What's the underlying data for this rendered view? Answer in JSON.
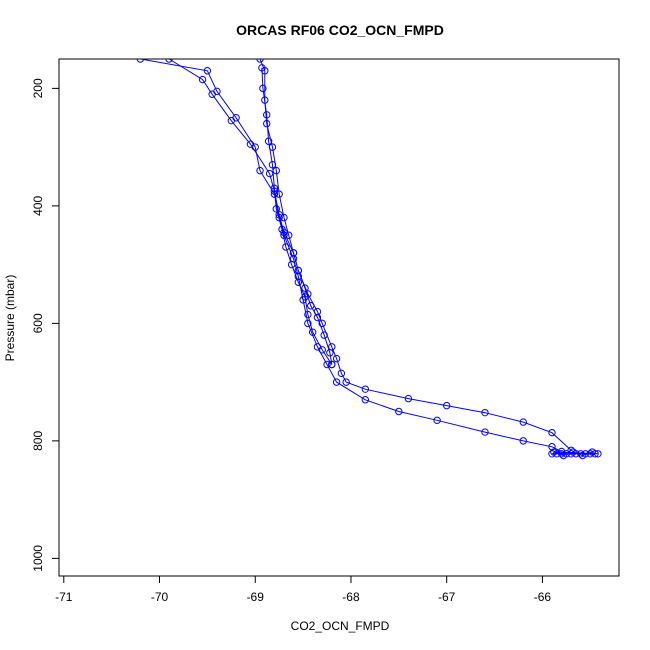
{
  "chart_data": {
    "type": "line",
    "title": "ORCAS RF06 CO2_OCN_FMPD",
    "xlabel": "CO2_OCN_FMPD",
    "ylabel": "Pressure (mbar)",
    "xlim": [
      -71.05,
      -65.2
    ],
    "ylim": [
      150,
      1030
    ],
    "y_reversed": true,
    "x_ticks": [
      -71,
      -70,
      -69,
      -68,
      -67,
      -66
    ],
    "y_ticks": [
      200,
      400,
      600,
      800,
      1000
    ],
    "grid": false,
    "legend": "none",
    "colors": {
      "series": "#0000ff",
      "axis": "#000000"
    },
    "series": [
      {
        "marker": "open-circle",
        "line": "solid",
        "points": [
          [
            -70.2,
            150
          ],
          [
            -69.5,
            170
          ],
          [
            -69.4,
            205
          ],
          [
            -69.2,
            250
          ],
          [
            -69.0,
            300
          ],
          [
            -68.95,
            340
          ],
          [
            -68.8,
            380
          ],
          [
            -68.75,
            420
          ],
          [
            -68.7,
            450
          ],
          [
            -68.6,
            490
          ],
          [
            -68.55,
            520
          ],
          [
            -68.5,
            560
          ],
          [
            -68.45,
            600
          ],
          [
            -68.35,
            640
          ],
          [
            -68.25,
            670
          ],
          [
            -68.15,
            700
          ],
          [
            -67.85,
            730
          ],
          [
            -67.5,
            750
          ],
          [
            -67.1,
            765
          ],
          [
            -66.6,
            785
          ],
          [
            -66.2,
            800
          ],
          [
            -65.9,
            810
          ],
          [
            -65.8,
            818
          ]
        ]
      },
      {
        "marker": "open-circle",
        "line": "solid",
        "points": [
          [
            -65.7,
            816
          ],
          [
            -65.9,
            786
          ],
          [
            -66.2,
            768
          ],
          [
            -66.6,
            752
          ],
          [
            -67.0,
            740
          ],
          [
            -67.4,
            728
          ],
          [
            -67.85,
            712
          ],
          [
            -68.05,
            700
          ],
          [
            -68.1,
            685
          ],
          [
            -68.15,
            660
          ],
          [
            -68.2,
            640
          ],
          [
            -68.3,
            600
          ],
          [
            -68.35,
            580
          ],
          [
            -68.45,
            550
          ],
          [
            -68.55,
            510
          ],
          [
            -68.6,
            480
          ],
          [
            -68.7,
            445
          ],
          [
            -68.75,
            415
          ],
          [
            -68.8,
            375
          ],
          [
            -68.85,
            345
          ],
          [
            -69.05,
            295
          ],
          [
            -69.25,
            255
          ],
          [
            -69.45,
            210
          ],
          [
            -69.55,
            185
          ],
          [
            -69.9,
            150
          ]
        ]
      },
      {
        "marker": "open-circle",
        "line": "solid",
        "points": [
          [
            -68.95,
            150
          ],
          [
            -68.9,
            170
          ],
          [
            -68.9,
            220
          ],
          [
            -68.88,
            260
          ],
          [
            -68.82,
            300
          ],
          [
            -68.78,
            340
          ],
          [
            -68.75,
            380
          ],
          [
            -68.7,
            420
          ],
          [
            -68.65,
            450
          ],
          [
            -68.6,
            480
          ],
          [
            -68.55,
            510
          ],
          [
            -68.48,
            540
          ],
          [
            -68.42,
            570
          ],
          [
            -68.35,
            590
          ],
          [
            -68.28,
            620
          ],
          [
            -68.22,
            650
          ],
          [
            -68.2,
            670
          ]
        ]
      },
      {
        "marker": "open-circle",
        "line": "solid",
        "points": [
          [
            -68.2,
            670
          ],
          [
            -68.3,
            645
          ],
          [
            -68.4,
            615
          ],
          [
            -68.45,
            585
          ],
          [
            -68.48,
            555
          ],
          [
            -68.55,
            530
          ],
          [
            -68.62,
            500
          ],
          [
            -68.68,
            470
          ],
          [
            -68.72,
            440
          ],
          [
            -68.78,
            405
          ],
          [
            -68.8,
            370
          ],
          [
            -68.82,
            330
          ],
          [
            -68.86,
            290
          ],
          [
            -68.88,
            245
          ],
          [
            -68.92,
            200
          ],
          [
            -68.93,
            165
          ]
        ]
      },
      {
        "marker": "open-circle",
        "line": "solid",
        "points": [
          [
            -65.9,
            822
          ],
          [
            -65.85,
            822
          ],
          [
            -65.8,
            822
          ],
          [
            -65.75,
            822
          ],
          [
            -65.7,
            822
          ],
          [
            -65.65,
            822
          ],
          [
            -65.6,
            822
          ],
          [
            -65.55,
            822
          ],
          [
            -65.5,
            822
          ],
          [
            -65.45,
            822
          ],
          [
            -65.42,
            822
          ],
          [
            -65.88,
            819
          ],
          [
            -65.78,
            825
          ],
          [
            -65.68,
            819
          ],
          [
            -65.58,
            825
          ],
          [
            -65.48,
            819
          ]
        ]
      }
    ]
  }
}
